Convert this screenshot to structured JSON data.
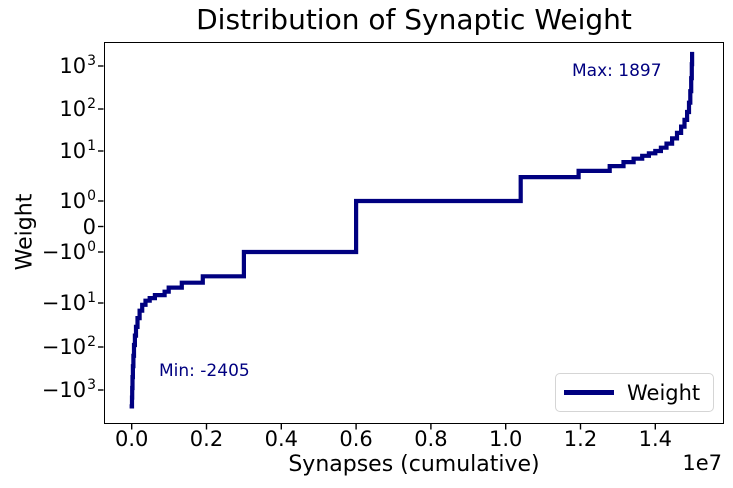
{
  "colors": {
    "line": "#000080",
    "annotation_text": "#000080",
    "axis": "#000000",
    "legend_border": "#d5d5d5",
    "background": "#ffffff"
  },
  "chart_data": {
    "type": "line",
    "title": "Distribution of Synaptic Weight",
    "xlabel": "Synapses (cumulative)",
    "ylabel": "Weight",
    "x_offset_label": "1e7",
    "yscale": "symlog",
    "grid": false,
    "xlim": [
      0,
      15000000
    ],
    "x_ticks": [
      {
        "label": "0.0",
        "value": 0
      },
      {
        "label": "0.2",
        "value": 2000000
      },
      {
        "label": "0.4",
        "value": 4000000
      },
      {
        "label": "0.6",
        "value": 6000000
      },
      {
        "label": "0.8",
        "value": 8000000
      },
      {
        "label": "1.0",
        "value": 10000000
      },
      {
        "label": "1.2",
        "value": 12000000
      },
      {
        "label": "1.4",
        "value": 14000000
      }
    ],
    "y_ticks": [
      {
        "base": "10",
        "exp": "3",
        "value": 1000
      },
      {
        "base": "10",
        "exp": "2",
        "value": 100
      },
      {
        "base": "10",
        "exp": "1",
        "value": 10
      },
      {
        "base": "10",
        "exp": "0",
        "value": 1
      },
      {
        "base": "0",
        "exp": "",
        "value": 0
      },
      {
        "base": "−10",
        "exp": "0",
        "value": -1
      },
      {
        "base": "−10",
        "exp": "1",
        "value": -10
      },
      {
        "base": "−10",
        "exp": "2",
        "value": -100
      },
      {
        "base": "−10",
        "exp": "3",
        "value": -1000
      }
    ],
    "annotations": [
      {
        "id": "max",
        "text": "Max: 1897",
        "value": 1897
      },
      {
        "id": "min",
        "text": "Min: -2405",
        "value": -2405
      }
    ],
    "legend": {
      "label": "Weight",
      "location": "lower right"
    },
    "series": [
      {
        "name": "Weight",
        "color": "#000080",
        "points": [
          [
            0,
            -2405
          ],
          [
            8000,
            -1500
          ],
          [
            14000,
            -900
          ],
          [
            22000,
            -500
          ],
          [
            32000,
            -280
          ],
          [
            45000,
            -160
          ],
          [
            62000,
            -90
          ],
          [
            85000,
            -55
          ],
          [
            115000,
            -35
          ],
          [
            155000,
            -22
          ],
          [
            210000,
            -15
          ],
          [
            280000,
            -11
          ],
          [
            370000,
            -9
          ],
          [
            480000,
            -8
          ],
          [
            620000,
            -7
          ],
          [
            880000,
            -6
          ],
          [
            990000,
            -5
          ],
          [
            1340000,
            -4
          ],
          [
            1900000,
            -3
          ],
          [
            3000000,
            -1
          ],
          [
            6000000,
            1
          ],
          [
            10400000,
            3
          ],
          [
            11950000,
            4
          ],
          [
            12780000,
            5
          ],
          [
            13150000,
            6
          ],
          [
            13420000,
            7
          ],
          [
            13650000,
            8
          ],
          [
            13830000,
            9
          ],
          [
            14000000,
            10
          ],
          [
            14150000,
            12
          ],
          [
            14300000,
            15
          ],
          [
            14450000,
            20
          ],
          [
            14580000,
            27
          ],
          [
            14690000,
            38
          ],
          [
            14780000,
            55
          ],
          [
            14850000,
            85
          ],
          [
            14900000,
            140
          ],
          [
            14935000,
            260
          ],
          [
            14960000,
            520
          ],
          [
            14975000,
            1100
          ],
          [
            14985000,
            1897
          ]
        ]
      }
    ]
  }
}
